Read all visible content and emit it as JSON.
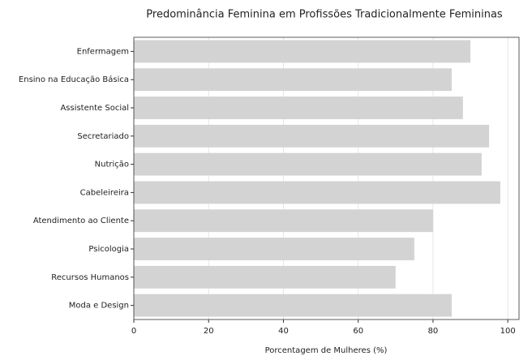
{
  "chart_data": {
    "type": "barh",
    "title": "Predominância Feminina em Profissões Tradicionalmente Femininas",
    "x_label": "Porcentagem de Mulheres (%)",
    "categories": [
      "Enfermagem",
      "Ensino na Educação Básica",
      "Assistente Social",
      "Secretariado",
      "Nutrição",
      "Cabeleireira",
      "Atendimento ao Cliente",
      "Psicologia",
      "Recursos Humanos",
      "Moda e Design"
    ],
    "values": [
      90,
      85,
      88,
      95,
      93,
      98,
      80,
      75,
      70,
      85
    ],
    "color": "#d3d3d3",
    "xlim": [
      0,
      103
    ],
    "xticks": [
      0,
      20,
      40,
      60,
      80,
      100
    ],
    "grid": true
  }
}
